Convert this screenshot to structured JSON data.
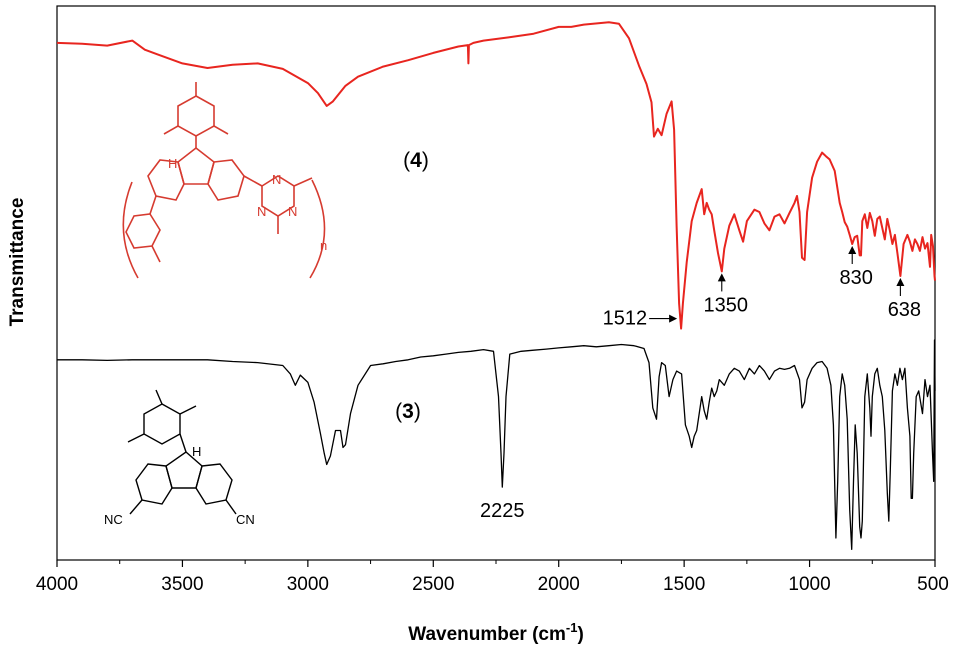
{
  "chart_data": {
    "type": "line",
    "xlabel": "Wavenumber (cm",
    "xlabel_sup": "-1",
    "xlabel_close": ")",
    "ylabel": "Transmittance",
    "xlim": [
      4000,
      500
    ],
    "x_reversed": true,
    "y_ticks_shown": false,
    "grid": false,
    "x_ticks": [
      4000,
      3500,
      3000,
      2500,
      2000,
      1500,
      1000,
      500
    ],
    "x_tick_labels": [
      "4000",
      "3500",
      "3000",
      "2500",
      "2000",
      "1500",
      "1000",
      "500"
    ],
    "series": [
      {
        "name": "(4)",
        "name_parts": [
          "(",
          "4",
          ")"
        ],
        "color": "#e8251f",
        "points": [
          [
            4000,
            0.95
          ],
          [
            3900,
            0.948
          ],
          [
            3800,
            0.944
          ],
          [
            3700,
            0.955
          ],
          [
            3650,
            0.935
          ],
          [
            3600,
            0.925
          ],
          [
            3500,
            0.905
          ],
          [
            3400,
            0.895
          ],
          [
            3300,
            0.902
          ],
          [
            3200,
            0.905
          ],
          [
            3100,
            0.893
          ],
          [
            3000,
            0.862
          ],
          [
            2960,
            0.84
          ],
          [
            2925,
            0.812
          ],
          [
            2900,
            0.822
          ],
          [
            2850,
            0.856
          ],
          [
            2800,
            0.876
          ],
          [
            2700,
            0.898
          ],
          [
            2600,
            0.912
          ],
          [
            2500,
            0.928
          ],
          [
            2400,
            0.942
          ],
          [
            2362,
            0.945
          ],
          [
            2360,
            0.905
          ],
          [
            2358,
            0.945
          ],
          [
            2340,
            0.95
          ],
          [
            2300,
            0.955
          ],
          [
            2200,
            0.962
          ],
          [
            2100,
            0.97
          ],
          [
            2000,
            0.985
          ],
          [
            1950,
            0.985
          ],
          [
            1900,
            0.99
          ],
          [
            1800,
            0.995
          ],
          [
            1760,
            0.992
          ],
          [
            1720,
            0.96
          ],
          [
            1680,
            0.9
          ],
          [
            1650,
            0.86
          ],
          [
            1630,
            0.82
          ],
          [
            1620,
            0.745
          ],
          [
            1605,
            0.762
          ],
          [
            1590,
            0.748
          ],
          [
            1570,
            0.795
          ],
          [
            1550,
            0.822
          ],
          [
            1540,
            0.76
          ],
          [
            1530,
            0.55
          ],
          [
            1520,
            0.38
          ],
          [
            1512,
            0.325
          ],
          [
            1505,
            0.38
          ],
          [
            1490,
            0.47
          ],
          [
            1470,
            0.56
          ],
          [
            1450,
            0.6
          ],
          [
            1430,
            0.63
          ],
          [
            1420,
            0.575
          ],
          [
            1410,
            0.6
          ],
          [
            1400,
            0.585
          ],
          [
            1390,
            0.575
          ],
          [
            1380,
            0.54
          ],
          [
            1365,
            0.49
          ],
          [
            1350,
            0.45
          ],
          [
            1340,
            0.5
          ],
          [
            1320,
            0.55
          ],
          [
            1300,
            0.575
          ],
          [
            1280,
            0.54
          ],
          [
            1265,
            0.515
          ],
          [
            1250,
            0.56
          ],
          [
            1220,
            0.585
          ],
          [
            1200,
            0.58
          ],
          [
            1180,
            0.555
          ],
          [
            1160,
            0.54
          ],
          [
            1140,
            0.57
          ],
          [
            1120,
            0.575
          ],
          [
            1100,
            0.555
          ],
          [
            1080,
            0.578
          ],
          [
            1060,
            0.6
          ],
          [
            1050,
            0.615
          ],
          [
            1040,
            0.58
          ],
          [
            1030,
            0.48
          ],
          [
            1020,
            0.475
          ],
          [
            1010,
            0.58
          ],
          [
            990,
            0.655
          ],
          [
            970,
            0.69
          ],
          [
            950,
            0.71
          ],
          [
            935,
            0.702
          ],
          [
            920,
            0.695
          ],
          [
            900,
            0.67
          ],
          [
            880,
            0.6
          ],
          [
            870,
            0.58
          ],
          [
            860,
            0.558
          ],
          [
            850,
            0.548
          ],
          [
            840,
            0.53
          ],
          [
            830,
            0.51
          ],
          [
            820,
            0.525
          ],
          [
            810,
            0.528
          ],
          [
            800,
            0.485
          ],
          [
            795,
            0.485
          ],
          [
            790,
            0.56
          ],
          [
            780,
            0.575
          ],
          [
            770,
            0.545
          ],
          [
            760,
            0.578
          ],
          [
            750,
            0.56
          ],
          [
            740,
            0.528
          ],
          [
            730,
            0.565
          ],
          [
            720,
            0.57
          ],
          [
            710,
            0.545
          ],
          [
            700,
            0.52
          ],
          [
            690,
            0.565
          ],
          [
            680,
            0.54
          ],
          [
            670,
            0.51
          ],
          [
            660,
            0.53
          ],
          [
            650,
            0.49
          ],
          [
            638,
            0.44
          ],
          [
            625,
            0.51
          ],
          [
            610,
            0.53
          ],
          [
            600,
            0.515
          ],
          [
            590,
            0.495
          ],
          [
            580,
            0.52
          ],
          [
            570,
            0.51
          ],
          [
            560,
            0.495
          ],
          [
            550,
            0.525
          ],
          [
            540,
            0.5
          ],
          [
            530,
            0.512
          ],
          [
            520,
            0.46
          ],
          [
            515,
            0.53
          ],
          [
            508,
            0.505
          ],
          [
            502,
            0.44
          ],
          [
            500,
            0.43
          ]
        ]
      },
      {
        "name": "(3)",
        "name_parts": [
          "(",
          "3",
          ")"
        ],
        "color": "#000000",
        "points": [
          [
            4000,
            0.265
          ],
          [
            3900,
            0.265
          ],
          [
            3800,
            0.264
          ],
          [
            3700,
            0.265
          ],
          [
            3600,
            0.265
          ],
          [
            3500,
            0.265
          ],
          [
            3400,
            0.265
          ],
          [
            3300,
            0.262
          ],
          [
            3200,
            0.26
          ],
          [
            3100,
            0.255
          ],
          [
            3070,
            0.24
          ],
          [
            3050,
            0.22
          ],
          [
            3030,
            0.238
          ],
          [
            3000,
            0.225
          ],
          [
            2975,
            0.19
          ],
          [
            2950,
            0.135
          ],
          [
            2935,
            0.1
          ],
          [
            2925,
            0.08
          ],
          [
            2910,
            0.095
          ],
          [
            2890,
            0.14
          ],
          [
            2870,
            0.14
          ],
          [
            2860,
            0.11
          ],
          [
            2850,
            0.115
          ],
          [
            2830,
            0.17
          ],
          [
            2800,
            0.22
          ],
          [
            2750,
            0.255
          ],
          [
            2700,
            0.258
          ],
          [
            2650,
            0.262
          ],
          [
            2600,
            0.265
          ],
          [
            2550,
            0.27
          ],
          [
            2500,
            0.272
          ],
          [
            2450,
            0.275
          ],
          [
            2400,
            0.278
          ],
          [
            2350,
            0.28
          ],
          [
            2300,
            0.283
          ],
          [
            2260,
            0.28
          ],
          [
            2240,
            0.2
          ],
          [
            2230,
            0.1
          ],
          [
            2225,
            0.04
          ],
          [
            2218,
            0.1
          ],
          [
            2210,
            0.2
          ],
          [
            2195,
            0.275
          ],
          [
            2150,
            0.28
          ],
          [
            2100,
            0.282
          ],
          [
            2050,
            0.284
          ],
          [
            2000,
            0.286
          ],
          [
            1950,
            0.288
          ],
          [
            1900,
            0.29
          ],
          [
            1850,
            0.288
          ],
          [
            1800,
            0.29
          ],
          [
            1750,
            0.292
          ],
          [
            1700,
            0.29
          ],
          [
            1660,
            0.285
          ],
          [
            1640,
            0.26
          ],
          [
            1625,
            0.18
          ],
          [
            1610,
            0.16
          ],
          [
            1600,
            0.235
          ],
          [
            1590,
            0.26
          ],
          [
            1575,
            0.255
          ],
          [
            1560,
            0.2
          ],
          [
            1545,
            0.23
          ],
          [
            1530,
            0.245
          ],
          [
            1510,
            0.24
          ],
          [
            1495,
            0.15
          ],
          [
            1480,
            0.13
          ],
          [
            1470,
            0.11
          ],
          [
            1460,
            0.13
          ],
          [
            1450,
            0.14
          ],
          [
            1440,
            0.17
          ],
          [
            1430,
            0.2
          ],
          [
            1420,
            0.175
          ],
          [
            1410,
            0.16
          ],
          [
            1400,
            0.19
          ],
          [
            1390,
            0.215
          ],
          [
            1380,
            0.2
          ],
          [
            1370,
            0.21
          ],
          [
            1360,
            0.23
          ],
          [
            1340,
            0.22
          ],
          [
            1320,
            0.24
          ],
          [
            1300,
            0.25
          ],
          [
            1280,
            0.245
          ],
          [
            1260,
            0.23
          ],
          [
            1240,
            0.25
          ],
          [
            1220,
            0.24
          ],
          [
            1200,
            0.255
          ],
          [
            1180,
            0.245
          ],
          [
            1160,
            0.23
          ],
          [
            1140,
            0.245
          ],
          [
            1120,
            0.25
          ],
          [
            1100,
            0.248
          ],
          [
            1080,
            0.25
          ],
          [
            1060,
            0.255
          ],
          [
            1040,
            0.23
          ],
          [
            1030,
            0.18
          ],
          [
            1020,
            0.19
          ],
          [
            1010,
            0.23
          ],
          [
            990,
            0.25
          ],
          [
            970,
            0.26
          ],
          [
            950,
            0.262
          ],
          [
            930,
            0.25
          ],
          [
            915,
            0.22
          ],
          [
            905,
            0.15
          ],
          [
            895,
            -0.05
          ],
          [
            888,
            0.05
          ],
          [
            880,
            0.2
          ],
          [
            870,
            0.24
          ],
          [
            860,
            0.22
          ],
          [
            850,
            0.16
          ],
          [
            840,
            0.0
          ],
          [
            832,
            -0.07
          ],
          [
            825,
            0.05
          ],
          [
            818,
            0.15
          ],
          [
            810,
            0.1
          ],
          [
            800,
            -0.03
          ],
          [
            795,
            -0.05
          ],
          [
            790,
            -0.02
          ],
          [
            780,
            0.2
          ],
          [
            770,
            0.24
          ],
          [
            760,
            0.18
          ],
          [
            755,
            0.13
          ],
          [
            750,
            0.2
          ],
          [
            740,
            0.24
          ],
          [
            730,
            0.25
          ],
          [
            720,
            0.22
          ],
          [
            710,
            0.2
          ],
          [
            700,
            0.14
          ],
          [
            690,
            0.03
          ],
          [
            684,
            -0.02
          ],
          [
            678,
            0.07
          ],
          [
            670,
            0.21
          ],
          [
            660,
            0.24
          ],
          [
            650,
            0.22
          ],
          [
            640,
            0.25
          ],
          [
            630,
            0.23
          ],
          [
            620,
            0.25
          ],
          [
            610,
            0.18
          ],
          [
            600,
            0.13
          ],
          [
            595,
            0.02
          ],
          [
            590,
            0.02
          ],
          [
            585,
            0.1
          ],
          [
            575,
            0.2
          ],
          [
            565,
            0.21
          ],
          [
            550,
            0.17
          ],
          [
            540,
            0.23
          ],
          [
            530,
            0.2
          ],
          [
            520,
            0.22
          ],
          [
            510,
            0.1
          ],
          [
            505,
            0.05
          ],
          [
            502,
            0.3
          ],
          [
            500,
            0.21
          ]
        ]
      }
    ],
    "annotations": [
      {
        "text": "1512",
        "x": 1512,
        "series": 0,
        "arrow": "right"
      },
      {
        "text": "1350",
        "x": 1350,
        "series": 0,
        "arrow": "up"
      },
      {
        "text": "830",
        "x": 830,
        "series": 0,
        "arrow": "up"
      },
      {
        "text": "638",
        "x": 638,
        "series": 0,
        "arrow": "up"
      },
      {
        "text": "2225",
        "x": 2225,
        "series": 1,
        "arrow": "none"
      }
    ]
  },
  "structure_4": {
    "color": "#d63b30",
    "atoms": {
      "h": "H",
      "n": "n",
      "n1": "N",
      "n2": "N",
      "n3": "N"
    }
  },
  "structure_3": {
    "color": "#000000",
    "atoms": {
      "h": "H",
      "cn_left": "NC",
      "cn_right": "CN"
    }
  }
}
